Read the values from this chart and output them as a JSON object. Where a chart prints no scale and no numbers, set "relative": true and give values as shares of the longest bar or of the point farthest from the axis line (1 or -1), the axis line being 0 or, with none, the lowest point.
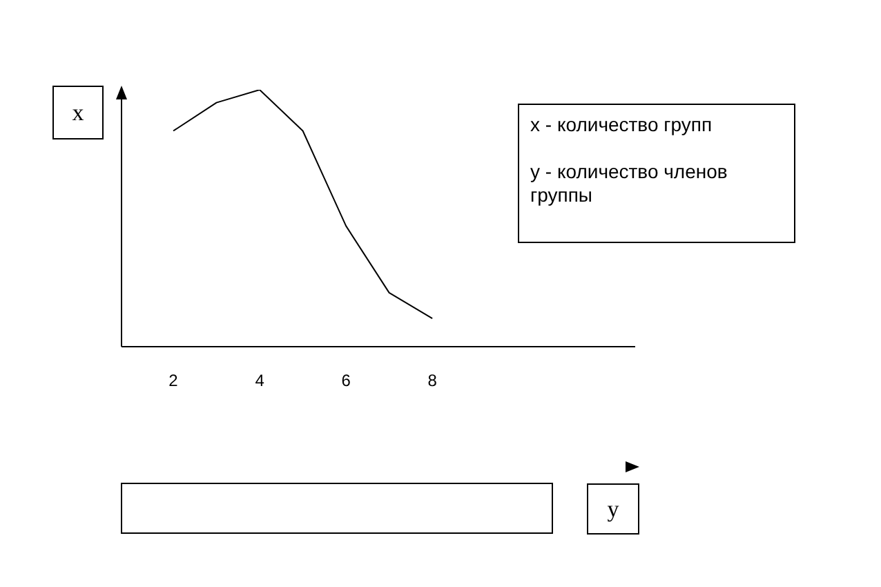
{
  "chart_data": {
    "type": "line",
    "relative": true,
    "x": [
      2,
      3,
      4,
      5,
      6,
      7,
      8
    ],
    "xlim": [
      0.8,
      12.7
    ],
    "xticks": [
      2,
      4,
      6,
      8
    ],
    "xlabel": "y",
    "ylabel": "x",
    "series": [
      {
        "color": "#000000",
        "values": [
          0.84,
          0.95,
          1,
          0.84,
          0.47,
          0.21,
          0.11
        ]
      }
    ],
    "annotations": [
      "x  -  количество групп",
      "y  -  количество членов группы"
    ],
    "marker": "none",
    "grid": false
  }
}
